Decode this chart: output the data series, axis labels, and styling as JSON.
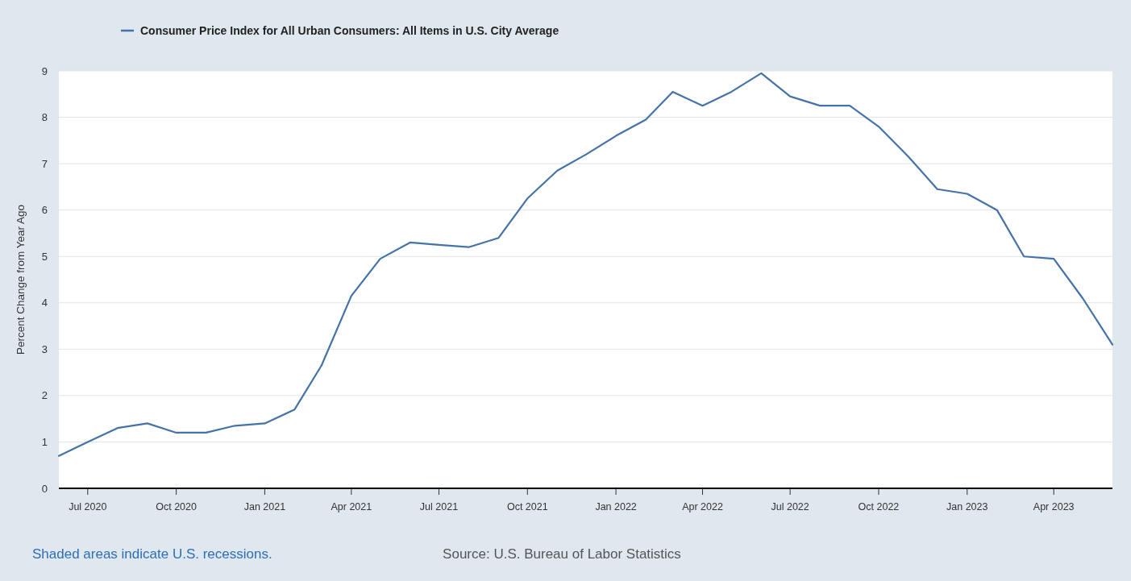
{
  "chart_data": {
    "type": "line",
    "ylabel": "Percent Change from Year Ago",
    "x": [
      "2020-06",
      "2020-07",
      "2020-08",
      "2020-09",
      "2020-10",
      "2020-11",
      "2020-12",
      "2021-01",
      "2021-02",
      "2021-03",
      "2021-04",
      "2021-05",
      "2021-06",
      "2021-07",
      "2021-08",
      "2021-09",
      "2021-10",
      "2021-11",
      "2021-12",
      "2022-01",
      "2022-02",
      "2022-03",
      "2022-04",
      "2022-05",
      "2022-06",
      "2022-07",
      "2022-08",
      "2022-09",
      "2022-10",
      "2022-11",
      "2022-12",
      "2023-01",
      "2023-02",
      "2023-03",
      "2023-04",
      "2023-05",
      "2023-06"
    ],
    "series": [
      {
        "name": "Consumer Price Index for All Urban Consumers: All Items in U.S. City Average",
        "color": "#4572a7",
        "values": [
          0.7,
          1.0,
          1.3,
          1.4,
          1.2,
          1.2,
          1.35,
          1.4,
          1.7,
          2.65,
          4.15,
          4.95,
          5.3,
          5.25,
          5.2,
          5.4,
          6.25,
          6.85,
          7.2,
          7.6,
          7.95,
          8.55,
          8.25,
          8.55,
          8.95,
          8.45,
          8.25,
          8.25,
          7.8,
          7.15,
          6.45,
          6.35,
          6.0,
          5.0,
          4.95,
          4.1,
          3.1
        ]
      }
    ],
    "xlim": [
      "2020-06",
      "2023-06"
    ],
    "xticks": [
      {
        "value": "2020-07",
        "label": "Jul 2020"
      },
      {
        "value": "2020-10",
        "label": "Oct 2020"
      },
      {
        "value": "2021-01",
        "label": "Jan 2021"
      },
      {
        "value": "2021-04",
        "label": "Apr 2021"
      },
      {
        "value": "2021-07",
        "label": "Jul 2021"
      },
      {
        "value": "2021-10",
        "label": "Oct 2021"
      },
      {
        "value": "2022-01",
        "label": "Jan 2022"
      },
      {
        "value": "2022-04",
        "label": "Apr 2022"
      },
      {
        "value": "2022-07",
        "label": "Jul 2022"
      },
      {
        "value": "2022-10",
        "label": "Oct 2022"
      },
      {
        "value": "2023-01",
        "label": "Jan 2023"
      },
      {
        "value": "2023-04",
        "label": "Apr 2023"
      }
    ],
    "ylim": [
      0,
      9
    ],
    "yticks": [
      0,
      1,
      2,
      3,
      4,
      5,
      6,
      7,
      8,
      9
    ],
    "grid": "y",
    "legend": "top left",
    "marker": "none",
    "line_style": "solid",
    "annotations": [
      "Shaded areas indicate U.S. recessions.",
      "Source: U.S. Bureau of Labor Statistics"
    ]
  }
}
